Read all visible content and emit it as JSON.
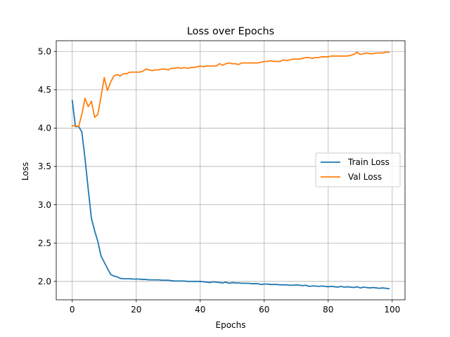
{
  "chart_data": {
    "type": "line",
    "title": "Loss over Epochs",
    "xlabel": "Epochs",
    "ylabel": "Loss",
    "xlim": [
      -5,
      104
    ],
    "ylim": [
      1.76,
      5.14
    ],
    "xticks": [
      0,
      20,
      40,
      60,
      80,
      100
    ],
    "yticks": [
      2.0,
      2.5,
      3.0,
      3.5,
      4.0,
      4.5,
      5.0
    ],
    "xtick_labels": [
      "0",
      "20",
      "40",
      "60",
      "80",
      "100"
    ],
    "ytick_labels": [
      "2.0",
      "2.5",
      "3.0",
      "3.5",
      "4.0",
      "4.5",
      "5.0"
    ],
    "grid": true,
    "legend_position": "center-right",
    "series": [
      {
        "name": "Train Loss",
        "color": "#1f77b4",
        "x": [
          0,
          1,
          2,
          3,
          4,
          5,
          6,
          7,
          8,
          9,
          10,
          11,
          12,
          13,
          14,
          15,
          16,
          17,
          18,
          19,
          20,
          21,
          22,
          23,
          24,
          25,
          26,
          27,
          28,
          29,
          30,
          31,
          32,
          33,
          34,
          35,
          36,
          37,
          38,
          39,
          40,
          41,
          42,
          43,
          44,
          45,
          46,
          47,
          48,
          49,
          50,
          51,
          52,
          53,
          54,
          55,
          56,
          57,
          58,
          59,
          60,
          61,
          62,
          63,
          64,
          65,
          66,
          67,
          68,
          69,
          70,
          71,
          72,
          73,
          74,
          75,
          76,
          77,
          78,
          79,
          80,
          81,
          82,
          83,
          84,
          85,
          86,
          87,
          88,
          89,
          90,
          91,
          92,
          93,
          94,
          95,
          96,
          97,
          98,
          99
        ],
        "values": [
          4.36,
          4.02,
          4.02,
          3.95,
          3.6,
          3.2,
          2.82,
          2.66,
          2.52,
          2.33,
          2.25,
          2.17,
          2.09,
          2.07,
          2.06,
          2.04,
          2.035,
          2.035,
          2.035,
          2.03,
          2.03,
          2.03,
          2.025,
          2.025,
          2.02,
          2.02,
          2.02,
          2.02,
          2.015,
          2.015,
          2.015,
          2.01,
          2.005,
          2.005,
          2.005,
          2.005,
          2.0,
          2.0,
          2.0,
          2.0,
          2.0,
          1.995,
          1.99,
          1.985,
          1.995,
          1.99,
          1.985,
          1.98,
          1.99,
          1.975,
          1.985,
          1.98,
          1.98,
          1.975,
          1.975,
          1.975,
          1.97,
          1.97,
          1.97,
          1.96,
          1.965,
          1.965,
          1.96,
          1.96,
          1.96,
          1.955,
          1.955,
          1.955,
          1.95,
          1.95,
          1.955,
          1.95,
          1.945,
          1.95,
          1.935,
          1.94,
          1.94,
          1.935,
          1.94,
          1.935,
          1.93,
          1.935,
          1.93,
          1.925,
          1.935,
          1.925,
          1.93,
          1.925,
          1.92,
          1.93,
          1.915,
          1.925,
          1.92,
          1.915,
          1.92,
          1.915,
          1.91,
          1.915,
          1.91,
          1.905
        ]
      },
      {
        "name": "Val Loss",
        "color": "#ff7f0e",
        "x": [
          0,
          1,
          2,
          3,
          4,
          5,
          6,
          7,
          8,
          9,
          10,
          11,
          12,
          13,
          14,
          15,
          16,
          17,
          18,
          19,
          20,
          21,
          22,
          23,
          24,
          25,
          26,
          27,
          28,
          29,
          30,
          31,
          32,
          33,
          34,
          35,
          36,
          37,
          38,
          39,
          40,
          41,
          42,
          43,
          44,
          45,
          46,
          47,
          48,
          49,
          50,
          51,
          52,
          53,
          54,
          55,
          56,
          57,
          58,
          59,
          60,
          61,
          62,
          63,
          64,
          65,
          66,
          67,
          68,
          69,
          70,
          71,
          72,
          73,
          74,
          75,
          76,
          77,
          78,
          79,
          80,
          81,
          82,
          83,
          84,
          85,
          86,
          87,
          88,
          89,
          90,
          91,
          92,
          93,
          94,
          95,
          96,
          97,
          98,
          99
        ],
        "values": [
          4.03,
          4.03,
          4.02,
          4.18,
          4.39,
          4.28,
          4.35,
          4.14,
          4.18,
          4.41,
          4.66,
          4.49,
          4.6,
          4.68,
          4.7,
          4.68,
          4.71,
          4.71,
          4.73,
          4.73,
          4.73,
          4.73,
          4.74,
          4.77,
          4.76,
          4.75,
          4.76,
          4.76,
          4.77,
          4.77,
          4.76,
          4.78,
          4.78,
          4.79,
          4.78,
          4.79,
          4.78,
          4.79,
          4.79,
          4.8,
          4.81,
          4.8,
          4.81,
          4.81,
          4.81,
          4.81,
          4.84,
          4.82,
          4.84,
          4.85,
          4.84,
          4.84,
          4.83,
          4.85,
          4.85,
          4.85,
          4.85,
          4.85,
          4.85,
          4.86,
          4.87,
          4.87,
          4.88,
          4.87,
          4.87,
          4.87,
          4.89,
          4.88,
          4.89,
          4.9,
          4.9,
          4.9,
          4.91,
          4.92,
          4.92,
          4.91,
          4.92,
          4.92,
          4.93,
          4.93,
          4.93,
          4.94,
          4.94,
          4.94,
          4.94,
          4.94,
          4.94,
          4.95,
          4.96,
          4.99,
          4.96,
          4.97,
          4.98,
          4.97,
          4.97,
          4.98,
          4.98,
          4.98,
          4.99,
          4.99
        ]
      }
    ]
  }
}
